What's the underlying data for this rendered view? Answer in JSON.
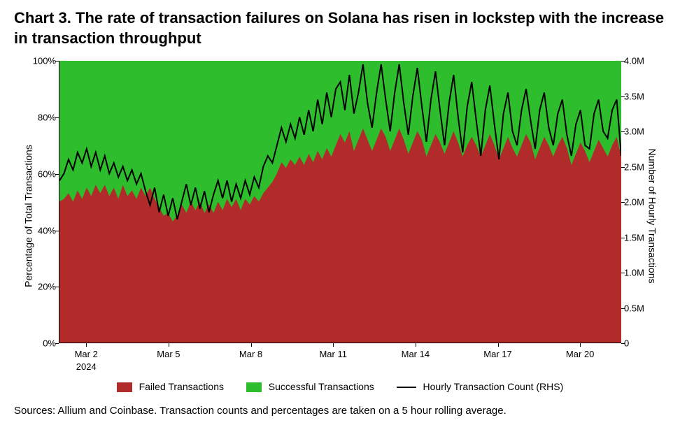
{
  "title": "Chart 3. The rate of transaction failures on Solana has risen in lockstep with the increase in transaction throughput",
  "source_note": "Sources: Allium and Coinbase. Transaction counts and percentages are taken on a 5 hour rolling average.",
  "chart": {
    "type": "stacked-area-with-line",
    "background_color": "#ffffff",
    "plot_border_color": "#000000",
    "y_left": {
      "label": "Percentage of Total Transactions",
      "min": 0,
      "max": 100,
      "ticks": [
        0,
        20,
        40,
        60,
        80,
        100
      ],
      "tick_labels": [
        "0%",
        "20%",
        "40%",
        "60%",
        "80%",
        "100%"
      ],
      "label_fontsize": 14,
      "tick_fontsize": 13
    },
    "y_right": {
      "label": "Number of Hourly Transactions",
      "min": 0,
      "max": 4000000,
      "ticks": [
        0,
        500000,
        1000000,
        1500000,
        2000000,
        2500000,
        3000000,
        3500000,
        4000000
      ],
      "tick_labels": [
        "0",
        "0.5M",
        "1.0M",
        "1.5M",
        "2.0M",
        "2.5M",
        "3.0M",
        "3.5M",
        "4.0M"
      ],
      "label_fontsize": 14,
      "tick_fontsize": 13
    },
    "x_axis": {
      "ticks": [
        1.0,
        4.0,
        7.0,
        10.0,
        13.0,
        16.0,
        19.0
      ],
      "tick_labels": [
        "Mar 2",
        "Mar 5",
        "Mar 8",
        "Mar 11",
        "Mar 14",
        "Mar 17",
        "Mar 20"
      ],
      "year_label": "2024",
      "year_label_at": 1.0,
      "min": 0,
      "max": 20.5,
      "tick_fontsize": 13
    },
    "series_failed": {
      "legend_label": "Failed Transactions",
      "color": "#b12b2b",
      "values_pct": [
        50,
        51,
        53,
        50,
        54,
        51,
        55,
        52,
        56,
        53,
        56,
        52,
        55,
        51,
        56,
        52,
        54,
        51,
        55,
        52,
        55,
        51,
        48,
        45,
        46,
        43,
        45,
        49,
        46,
        50,
        47,
        50,
        46,
        49,
        46,
        50,
        47,
        51,
        48,
        51,
        47,
        51,
        49,
        52,
        50,
        53,
        55,
        57,
        60,
        64,
        62,
        65,
        63,
        66,
        63,
        67,
        64,
        68,
        65,
        69,
        66,
        70,
        74,
        71,
        75,
        68,
        72,
        76,
        72,
        68,
        72,
        76,
        73,
        68,
        72,
        76,
        72,
        67,
        71,
        75,
        72,
        66,
        70,
        74,
        71,
        67,
        71,
        75,
        71,
        66,
        70,
        73,
        70,
        66,
        70,
        74,
        70,
        65,
        69,
        73,
        69,
        66,
        70,
        74,
        71,
        65,
        69,
        73,
        70,
        66,
        70,
        73,
        69,
        63,
        67,
        71,
        68,
        64,
        68,
        72,
        69,
        66,
        70,
        73,
        66
      ]
    },
    "series_success": {
      "legend_label": "Successful Transactions",
      "color": "#2dbd2d"
    },
    "series_line": {
      "legend_label": "Hourly Transaction Count (RHS)",
      "color": "#000000",
      "line_width": 2,
      "values_millions": [
        2.3,
        2.4,
        2.6,
        2.45,
        2.7,
        2.55,
        2.75,
        2.5,
        2.7,
        2.45,
        2.65,
        2.4,
        2.55,
        2.35,
        2.5,
        2.3,
        2.45,
        2.25,
        2.4,
        2.15,
        1.95,
        2.2,
        1.85,
        2.1,
        1.8,
        2.05,
        1.75,
        2.0,
        2.25,
        1.95,
        2.2,
        1.9,
        2.15,
        1.85,
        2.1,
        2.3,
        2.05,
        2.3,
        2.0,
        2.25,
        2.05,
        2.3,
        2.1,
        2.35,
        2.2,
        2.5,
        2.65,
        2.55,
        2.8,
        3.05,
        2.85,
        3.1,
        2.9,
        3.2,
        2.95,
        3.3,
        3.0,
        3.45,
        3.1,
        3.55,
        3.2,
        3.6,
        3.7,
        3.3,
        3.8,
        3.25,
        3.55,
        3.95,
        3.4,
        3.05,
        3.55,
        3.95,
        3.45,
        3.0,
        3.55,
        3.95,
        3.4,
        2.95,
        3.5,
        3.9,
        3.35,
        2.85,
        3.45,
        3.85,
        3.3,
        2.8,
        3.4,
        3.8,
        3.2,
        2.7,
        3.35,
        3.7,
        3.15,
        2.65,
        3.3,
        3.65,
        3.1,
        2.6,
        3.25,
        3.55,
        3.0,
        2.8,
        3.3,
        3.6,
        3.15,
        2.75,
        3.3,
        3.55,
        3.05,
        2.8,
        3.25,
        3.45,
        2.95,
        2.65,
        3.1,
        3.3,
        2.8,
        2.75,
        3.25,
        3.45,
        3.0,
        2.9,
        3.3,
        3.45,
        2.65
      ]
    },
    "n_points": 125,
    "legend_fontsize": 14
  }
}
